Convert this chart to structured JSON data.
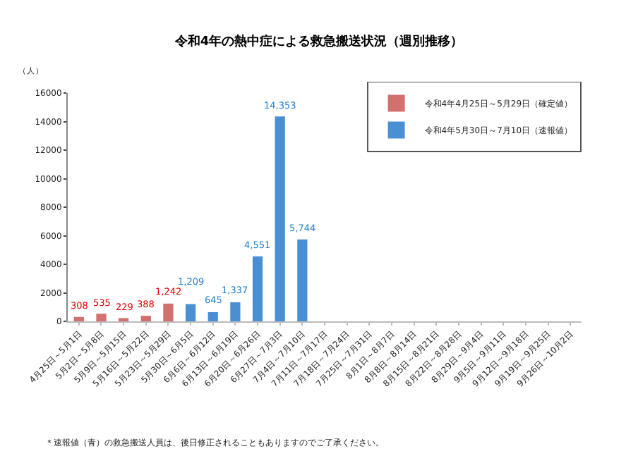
{
  "chart_data": {
    "type": "bar",
    "title": "令和4年の熱中症による救急搬送状況（週別推移）",
    "ylabel": "（人）",
    "categories": [
      "4月25日～5月1日",
      "5月2日～5月8日",
      "5月9日～5月15日",
      "5月16日～5月22日",
      "5月23日～5月29日",
      "5月30日～6月5日",
      "6月6日～6月12日",
      "6月13日～6月19日",
      "6月20日～6月26日",
      "6月27日～7月3日",
      "7月4日～7月10日",
      "7月11日～7月17日",
      "7月18日～7月24日",
      "7月25日～7月31日",
      "8月1日～8月7日",
      "8月8日～8月14日",
      "8月15日～8月21日",
      "8月22日～8月28日",
      "8月29日～9月4日",
      "9月5日～9月11日",
      "9月12日～9月18日",
      "9月19日～9月25日",
      "9月26日～10月2日"
    ],
    "series": [
      {
        "name": "令和4年4月25日～5月29日（確定値）",
        "color": "#d2706e",
        "values": [
          308,
          535,
          229,
          388,
          1242,
          null,
          null,
          null,
          null,
          null,
          null,
          null,
          null,
          null,
          null,
          null,
          null,
          null,
          null,
          null,
          null,
          null,
          null
        ],
        "value_labels": [
          "308",
          "535",
          "229",
          "388",
          "1,242",
          null,
          null,
          null,
          null,
          null,
          null,
          null,
          null,
          null,
          null,
          null,
          null,
          null,
          null,
          null,
          null,
          null,
          null
        ]
      },
      {
        "name": "令和4年5月30日～7月10日（速報値）",
        "color": "#4a8fd4",
        "values": [
          null,
          null,
          null,
          null,
          null,
          1209,
          645,
          1337,
          4551,
          14353,
          5744,
          null,
          null,
          null,
          null,
          null,
          null,
          null,
          null,
          null,
          null,
          null,
          null
        ],
        "value_labels": [
          null,
          null,
          null,
          null,
          null,
          "1,209",
          "645",
          "1,337",
          "4,551",
          "14,353",
          "5,744",
          null,
          null,
          null,
          null,
          null,
          null,
          null,
          null,
          null,
          null,
          null,
          null
        ]
      }
    ],
    "ylim": [
      0,
      16000
    ],
    "yticks": [
      0,
      2000,
      4000,
      6000,
      8000,
      10000,
      12000,
      14000,
      16000
    ],
    "legend": "top right",
    "annotations": [
      "＊速報値（青）の救急搬送人員は、後日修正されることもありますのでご了承ください。"
    ]
  }
}
